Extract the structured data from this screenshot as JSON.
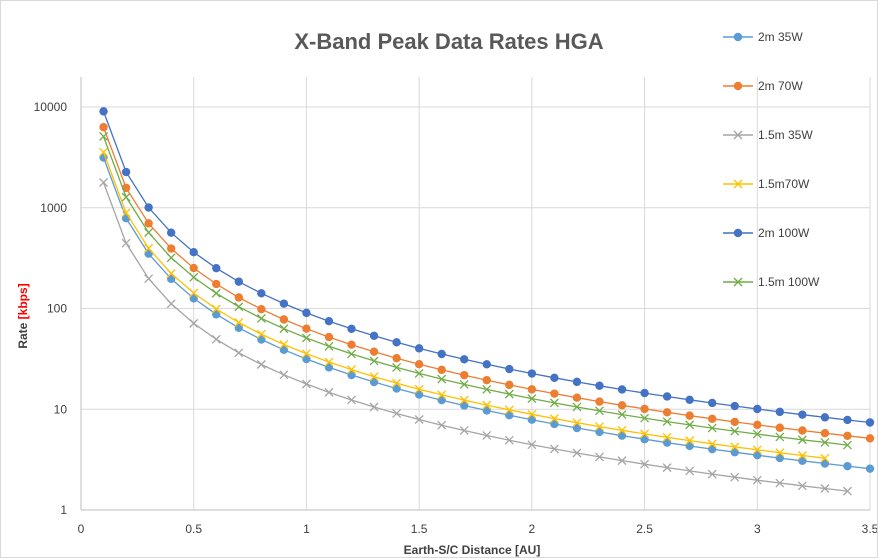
{
  "chart_data": {
    "type": "line",
    "title": "X-Band Peak Data Rates HGA",
    "xlabel": "Earth-S/C Distance [AU]",
    "ylabel": {
      "prefix": "Rate ",
      "open": "[",
      "unit": "kbps",
      "close": "]"
    },
    "xlim": [
      0,
      3.5
    ],
    "ylim": [
      1,
      10000
    ],
    "yscale": "log",
    "xticks": [
      "0",
      "0.5",
      "1",
      "1.5",
      "2",
      "2.5",
      "3",
      "3.5"
    ],
    "yticks": [
      "1",
      "10",
      "100",
      "1000",
      "10000"
    ],
    "grid": "horizontal major and vertical major",
    "legend_position": "right",
    "series": [
      {
        "name": "2m 35W",
        "color": "#5b9bd5",
        "marker": "circle",
        "k": 31.5,
        "x_end": 3.5
      },
      {
        "name": "2m 70W",
        "color": "#ed7d31",
        "marker": "circle",
        "k": 63,
        "x_end": 3.5
      },
      {
        "name": "1.5m 35W",
        "color": "#a5a5a5",
        "marker": "x",
        "k": 17.8,
        "x_end": 3.4
      },
      {
        "name": "1.5m70W",
        "color": "#ffc000",
        "marker": "x",
        "k": 35.6,
        "x_end": 3.3
      },
      {
        "name": "2m 100W",
        "color": "#4472c4",
        "marker": "circle",
        "k": 90.5,
        "x_end": 3.5
      },
      {
        "name": "1.5m 100W",
        "color": "#70ad47",
        "marker": "x",
        "k": 51,
        "x_end": 3.4
      }
    ],
    "x_values_start": 0.1,
    "x_values_step": 0.1,
    "relation": "rate = k / x^2"
  }
}
